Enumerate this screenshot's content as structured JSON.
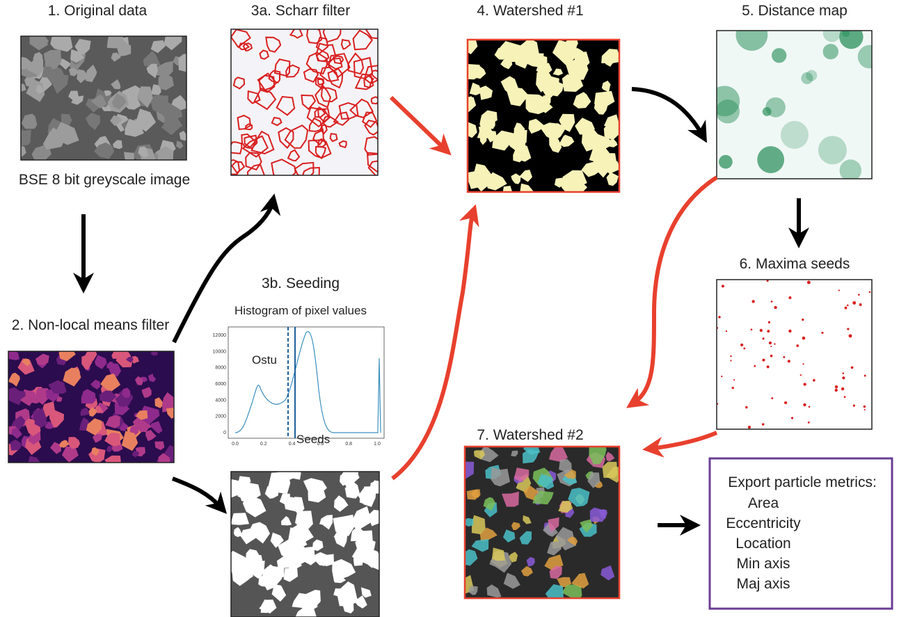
{
  "original": {
    "title": "1. Original data",
    "caption": "BSE 8 bit greyscale image"
  },
  "nlm": {
    "title": "2. Non-local means filter"
  },
  "scharr": {
    "title": "3a. Scharr  filter"
  },
  "seeding": {
    "title": "3b. Seeding"
  },
  "histogram": {
    "title": "Histogram of pixel values",
    "yticks": [
      "0",
      "2000",
      "4000",
      "6000",
      "8000",
      "10000",
      "12000"
    ],
    "xticks": [
      "0.0",
      "0.2",
      "0.4",
      "0.6",
      "0.8",
      "1.0"
    ],
    "otsu_label": "Ostu",
    "seeds_label": "Seeds"
  },
  "watershed1": {
    "title": "4. Watershed #1"
  },
  "distance": {
    "title": "5. Distance map"
  },
  "maxima": {
    "title": "6. Maxima seeds"
  },
  "watershed2": {
    "title": "7. Watershed #2"
  },
  "export": {
    "title": "Export particle metrics:",
    "items": [
      "Area",
      "Eccentricity",
      "Location",
      "Min axis",
      "Maj axis"
    ]
  }
}
